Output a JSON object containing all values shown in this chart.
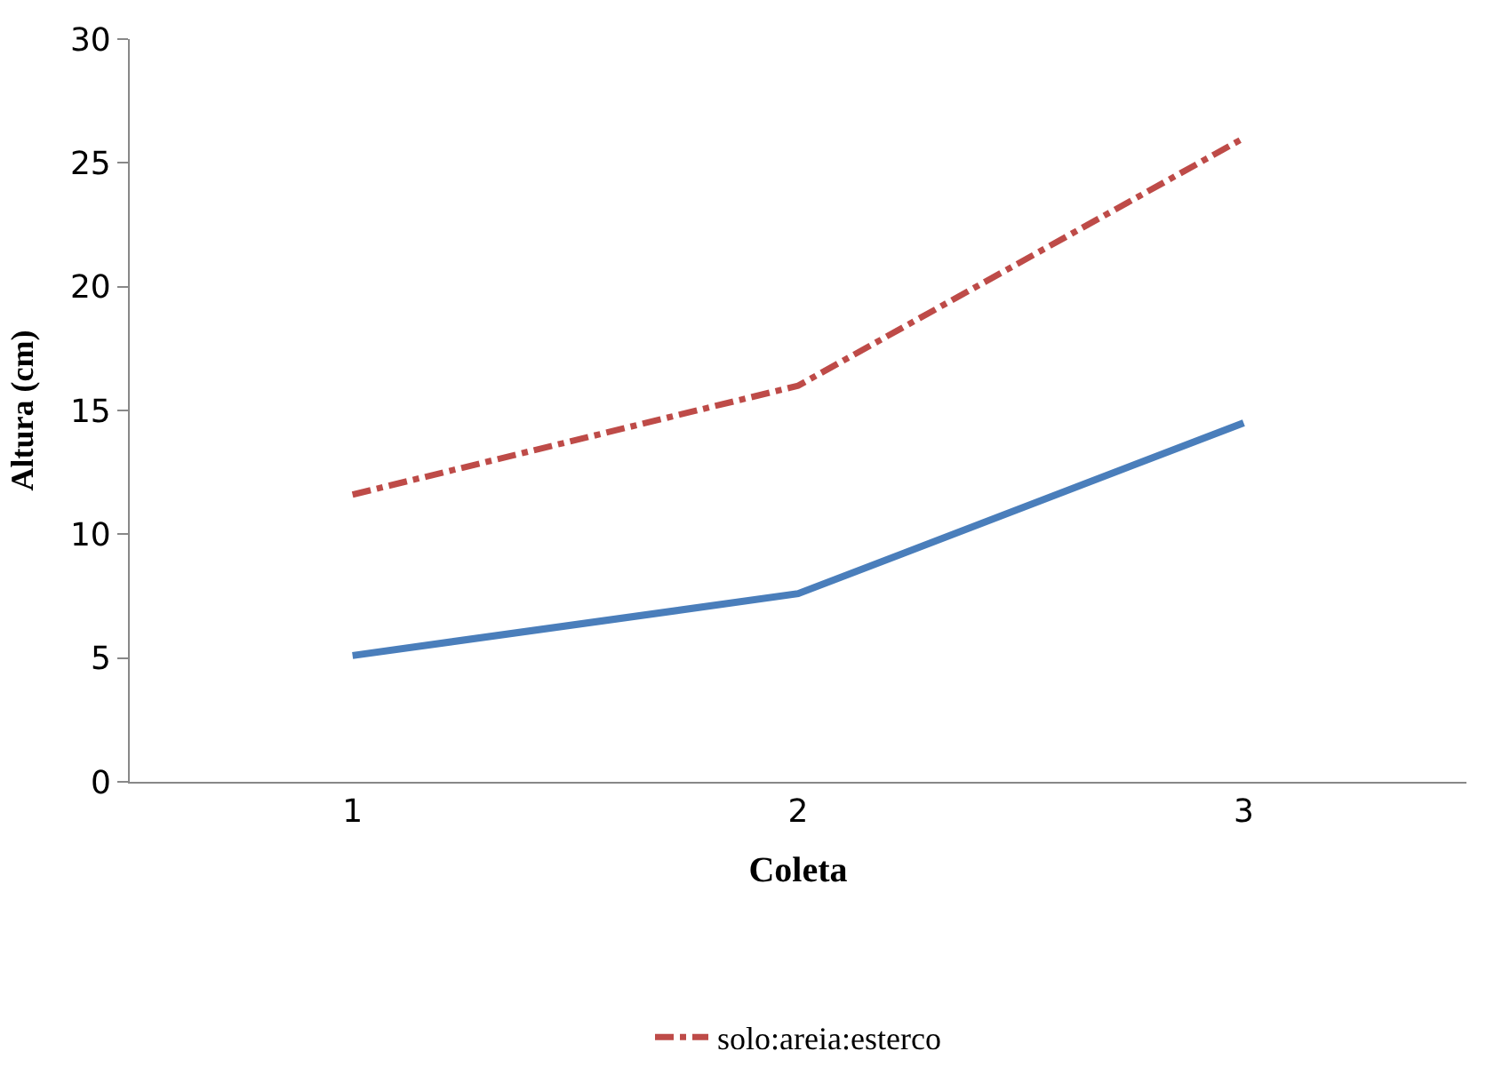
{
  "chart_data": {
    "type": "line",
    "xlabel": "Coleta",
    "ylabel": "Altura (cm)",
    "categories": [
      "1",
      "2",
      "3"
    ],
    "series": [
      {
        "color": "#4a7ebb",
        "values": [
          5.1,
          7.6,
          14.5
        ],
        "line_style": "solid"
      },
      {
        "name": "solo:areia:esterco",
        "color": "#be4b48",
        "values": [
          11.6,
          16.0,
          26.0
        ],
        "line_style": "dashed"
      }
    ],
    "ylim": [
      0,
      30
    ],
    "yticks": [
      0,
      5,
      10,
      15,
      20,
      25,
      30
    ],
    "legend": "bottom",
    "marker": "none"
  }
}
